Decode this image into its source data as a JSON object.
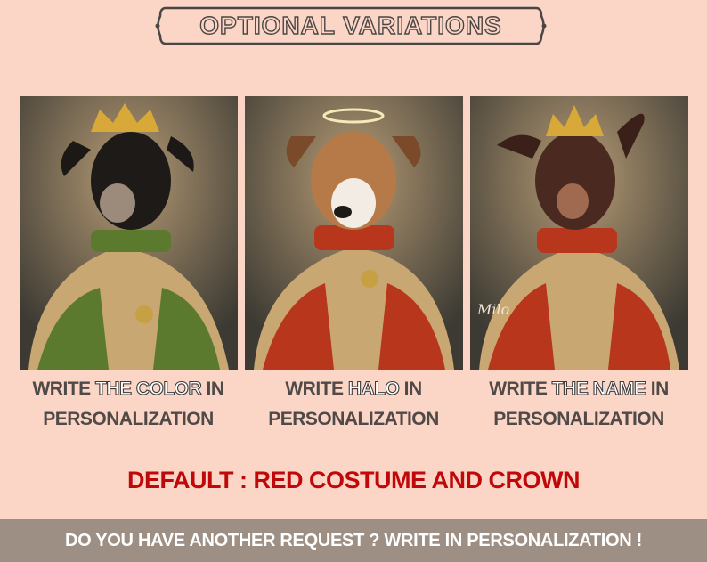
{
  "title": "OPTIONAL VARIATIONS",
  "variations": [
    {
      "pre": "WRITE ",
      "highlight": "THE COLOR",
      "post": " IN",
      "line2": "PERSONALIZATION",
      "image": "dog-portrait-green-costume-crown",
      "costume_color": "#5c7a2e"
    },
    {
      "pre": "WRITE ",
      "highlight": "HALO",
      "post": " IN",
      "line2": "PERSONALIZATION",
      "image": "dog-portrait-red-costume-halo",
      "costume_color": "#b8361c"
    },
    {
      "pre": "WRITE ",
      "highlight": "THE NAME",
      "post": " IN",
      "line2": "PERSONALIZATION",
      "image": "dog-portrait-red-costume-crown-name",
      "costume_color": "#b8361c",
      "signature": "Milo"
    }
  ],
  "default_note": "DEFAULT : RED COSTUME AND CROWN",
  "footer": "DO YOU HAVE ANOTHER REQUEST ? WRITE IN PERSONALIZATION !",
  "colors": {
    "background": "#fbd5c6",
    "accent_red": "#c0080a",
    "text_gray": "#4f4a48",
    "footer_bar": "#9e8f85"
  }
}
